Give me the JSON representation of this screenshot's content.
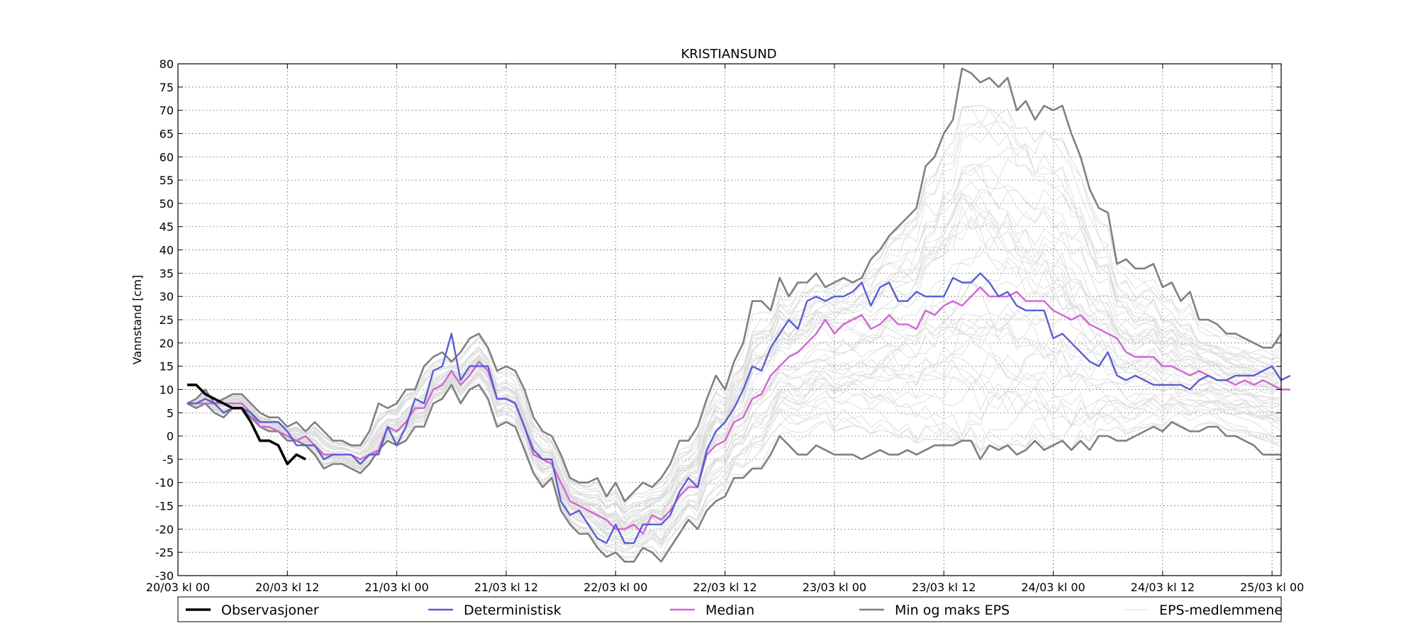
{
  "chart_data": {
    "type": "line",
    "title": "KRISTIANSUND",
    "ylabel": "Vannstand [cm]",
    "xlabel": "",
    "ylim": [
      -30,
      80
    ],
    "yticks": [
      -30,
      -25,
      -20,
      -15,
      -10,
      -5,
      0,
      5,
      10,
      15,
      20,
      25,
      30,
      35,
      40,
      45,
      50,
      55,
      60,
      65,
      70,
      75,
      80
    ],
    "x_unit": "hours from 20/03 kl 00",
    "xlim": [
      0,
      121
    ],
    "xticks": [
      {
        "x": 0,
        "label": "20/03 kl 00"
      },
      {
        "x": 12,
        "label": "20/03 kl 12"
      },
      {
        "x": 24,
        "label": "21/03 kl 00"
      },
      {
        "x": 36,
        "label": "21/03 kl 12"
      },
      {
        "x": 48,
        "label": "22/03 kl 00"
      },
      {
        "x": 60,
        "label": "22/03 kl 12"
      },
      {
        "x": 72,
        "label": "23/03 kl 00"
      },
      {
        "x": 84,
        "label": "23/03 kl 12"
      },
      {
        "x": 96,
        "label": "24/03 kl 00"
      },
      {
        "x": 108,
        "label": "24/03 kl 12"
      },
      {
        "x": 120,
        "label": "25/03 kl 00"
      }
    ],
    "grid": true,
    "legend_position": "bottom",
    "series": [
      {
        "name": "Observasjoner",
        "color": "#000000",
        "x": [
          1,
          2,
          3,
          4,
          5,
          6,
          7,
          8,
          9,
          10,
          11,
          12,
          13,
          14
        ],
        "y": [
          11,
          11,
          9,
          8,
          7,
          6,
          6,
          3,
          -1,
          -1,
          -2,
          -6,
          -4,
          -5
        ]
      },
      {
        "name": "Deterministisk",
        "color": "#5a5ed0",
        "x_start": 1,
        "y": [
          7,
          7,
          8,
          7,
          5,
          6,
          6,
          5,
          3,
          3,
          3,
          1,
          -2,
          -2,
          -2,
          -5,
          -4,
          -4,
          -4,
          -6,
          -4,
          -4,
          2,
          -2,
          2,
          8,
          7,
          14,
          15,
          22,
          12,
          15,
          15,
          15,
          8,
          8,
          7,
          2,
          -3,
          -5,
          -5,
          -14,
          -17,
          -16,
          -19,
          -22,
          -23,
          -19,
          -23,
          -23,
          -19,
          -19,
          -19,
          -17,
          -12,
          -9,
          -11,
          -3,
          1,
          3,
          6,
          10,
          15,
          14,
          19,
          22,
          25,
          23,
          29,
          30,
          29,
          30,
          30,
          31,
          33,
          28,
          32,
          33,
          29,
          29,
          31,
          30,
          30,
          30,
          34,
          33,
          33,
          35,
          33,
          30,
          31,
          28,
          27,
          27,
          27,
          21,
          22,
          20,
          18,
          16,
          15,
          18,
          13,
          12,
          13,
          12,
          11,
          11,
          11,
          11,
          10,
          12,
          13,
          12,
          12,
          13,
          13,
          13,
          14,
          15,
          12,
          13
        ]
      },
      {
        "name": "Median",
        "color": "#d266d2",
        "x_start": 1,
        "y": [
          7,
          7,
          7,
          7,
          7,
          7,
          7,
          5,
          2,
          2,
          1,
          0,
          -1,
          0,
          -2,
          -4,
          -4,
          -4,
          -4,
          -5,
          -4,
          -3,
          2,
          1,
          3,
          6,
          6,
          10,
          11,
          14,
          11,
          13,
          16,
          14,
          8,
          8,
          7,
          2,
          -4,
          -5,
          -6,
          -10,
          -14,
          -15,
          -16,
          -17,
          -18,
          -20,
          -20,
          -19,
          -21,
          -17,
          -18,
          -16,
          -13,
          -11,
          -11,
          -4,
          -2,
          -1,
          3,
          4,
          8,
          9,
          13,
          15,
          17,
          18,
          20,
          22,
          25,
          22,
          24,
          25,
          26,
          23,
          24,
          26,
          24,
          24,
          23,
          27,
          26,
          28,
          29,
          28,
          30,
          32,
          30,
          30,
          30,
          31,
          29,
          29,
          29,
          27,
          26,
          25,
          26,
          24,
          23,
          22,
          21,
          18,
          17,
          17,
          17,
          15,
          15,
          14,
          13,
          14,
          13,
          12,
          12,
          11,
          12,
          11,
          12,
          11,
          10,
          10
        ]
      },
      {
        "name": "Min og maks EPS",
        "color": "#808080",
        "x_start": 1,
        "y_max": [
          7,
          8,
          10,
          7,
          8,
          9,
          9,
          7,
          5,
          4,
          4,
          2,
          3,
          1,
          3,
          1,
          -1,
          -1,
          -2,
          -2,
          1,
          7,
          6,
          7,
          10,
          10,
          15,
          17,
          18,
          16,
          18,
          21,
          22,
          19,
          14,
          15,
          14,
          10,
          4,
          1,
          0,
          -4,
          -9,
          -10,
          -10,
          -9,
          -13,
          -10,
          -14,
          -12,
          -10,
          -11,
          -9,
          -6,
          -1,
          -1,
          2,
          8,
          13,
          10,
          16,
          20,
          29,
          29,
          27,
          34,
          30,
          33,
          33,
          35,
          32,
          33,
          34,
          33,
          34,
          38,
          40,
          43,
          45,
          47,
          49,
          58,
          60,
          65,
          68,
          79,
          78,
          76,
          77,
          75,
          77,
          70,
          72,
          68,
          71,
          70,
          71,
          65,
          60,
          53,
          49,
          48,
          37,
          38,
          36,
          36,
          37,
          32,
          33,
          29,
          31,
          25,
          25,
          24,
          22,
          22,
          21,
          20,
          19,
          19,
          22
        ],
        "y_min": [
          7,
          6,
          7,
          5,
          4,
          6,
          6,
          4,
          2,
          1,
          1,
          -1,
          -1,
          -2,
          -4,
          -7,
          -6,
          -6,
          -7,
          -8,
          -6,
          -3,
          -1,
          -2,
          -1,
          2,
          2,
          7,
          8,
          11,
          7,
          10,
          11,
          8,
          2,
          3,
          2,
          -3,
          -8,
          -11,
          -9,
          -16,
          -19,
          -21,
          -21,
          -24,
          -26,
          -25,
          -27,
          -27,
          -24,
          -25,
          -27,
          -24,
          -21,
          -18,
          -20,
          -16,
          -14,
          -13,
          -9,
          -9,
          -7,
          -7,
          -4,
          0,
          -2,
          -4,
          -4,
          -2,
          -3,
          -4,
          -4,
          -4,
          -5,
          -4,
          -3,
          -4,
          -4,
          -3,
          -4,
          -3,
          -2,
          -2,
          -2,
          -1,
          -1,
          -5,
          -2,
          -3,
          -2,
          -4,
          -3,
          -1,
          -3,
          -2,
          -1,
          -3,
          -1,
          -3,
          0,
          0,
          -1,
          -1,
          0,
          1,
          2,
          1,
          3,
          2,
          1,
          1,
          2,
          2,
          0,
          0,
          -1,
          -2,
          -4,
          -4,
          -4
        ]
      },
      {
        "name": "EPS-medlemmene",
        "color": "#dcdcdc",
        "count": 50
      }
    ]
  }
}
